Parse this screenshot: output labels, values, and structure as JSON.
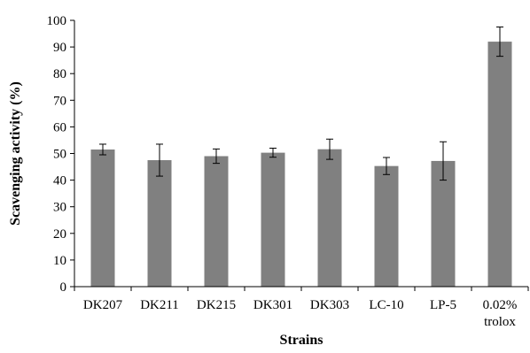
{
  "chart_data": {
    "type": "bar",
    "title": "",
    "xlabel": "Strains",
    "ylabel": "Scavenging activity (%)",
    "categories": [
      [
        "DK207"
      ],
      [
        "DK211"
      ],
      [
        "DK215"
      ],
      [
        "DK301"
      ],
      [
        "DK303"
      ],
      [
        "LC-10"
      ],
      [
        "LP-5"
      ],
      [
        "0.02%",
        "trolox"
      ]
    ],
    "values": [
      51.5,
      47.5,
      49.0,
      50.3,
      51.6,
      45.3,
      47.2,
      92.0
    ],
    "error": [
      2.0,
      6.0,
      2.7,
      1.7,
      3.8,
      3.2,
      7.2,
      5.5
    ],
    "ylim": [
      0,
      100
    ],
    "yticks": [
      0,
      10,
      20,
      30,
      40,
      50,
      60,
      70,
      80,
      90,
      100
    ],
    "grid": false,
    "legend": "none",
    "bar_color": "#808080"
  }
}
